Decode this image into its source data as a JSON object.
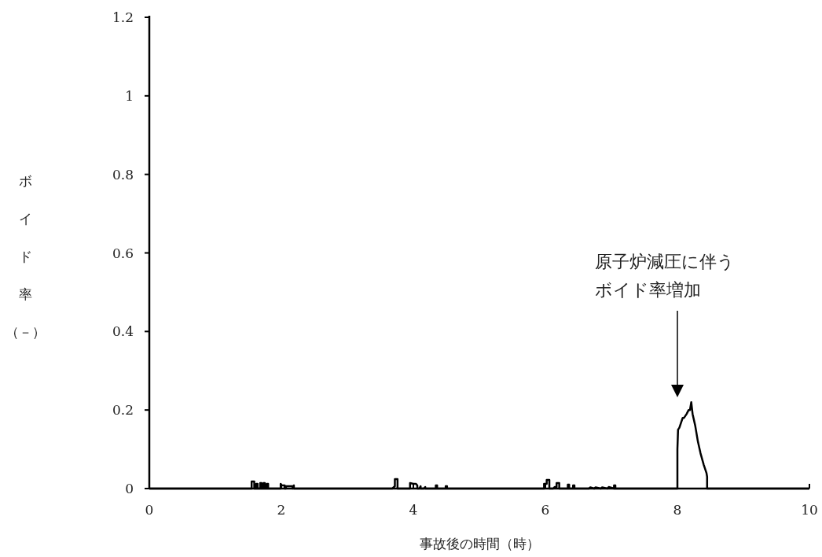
{
  "chart_data": {
    "type": "line",
    "xlabel": "事故後の時間（時）",
    "ylabel": "ボイド率（－）",
    "xlim": [
      0,
      10
    ],
    "ylim": [
      0,
      1.2
    ],
    "xticks": [
      0,
      2,
      4,
      6,
      8,
      10
    ],
    "yticks": [
      0,
      0.2,
      0.4,
      0.6,
      0.8,
      1,
      1.2
    ],
    "grid": false,
    "marker": "none",
    "line_style": "solid",
    "annotations": [
      "原子炉減圧に伴うボイド率増加"
    ],
    "series": [
      {
        "color": "#000000",
        "x": [
          0,
          1.55,
          1.55,
          1.59,
          1.59,
          1.62,
          1.62,
          1.64,
          1.64,
          1.68,
          1.68,
          1.7,
          1.7,
          1.73,
          1.73,
          1.75,
          1.75,
          1.78,
          1.78,
          1.8,
          1.8,
          1.99,
          1.99,
          2.01,
          2.05,
          2.05,
          2.07,
          2.07,
          2.17,
          2.17,
          2.19,
          2.19,
          3.68,
          3.72,
          3.72,
          3.76,
          3.76,
          3.95,
          3.95,
          4.0,
          4.04,
          4.06,
          4.06,
          4.09,
          4.11,
          4.11,
          4.16,
          4.18,
          4.18,
          4.34,
          4.34,
          4.36,
          4.36,
          4.49,
          4.49,
          4.51,
          4.51,
          5.98,
          5.98,
          6.02,
          6.02,
          6.06,
          6.06,
          6.12,
          6.14,
          6.17,
          6.17,
          6.21,
          6.21,
          6.34,
          6.34,
          6.36,
          6.36,
          6.42,
          6.42,
          6.44,
          6.44,
          6.66,
          6.68,
          6.74,
          6.76,
          6.84,
          6.86,
          6.94,
          6.96,
          7.04,
          7.04,
          7.06,
          7.06,
          8.0,
          8.0,
          8.01,
          8.03,
          8.06,
          8.08,
          8.1,
          8.14,
          8.17,
          8.19,
          8.21,
          8.23,
          8.27,
          8.31,
          8.35,
          8.4,
          8.44,
          8.45,
          8.45,
          10
        ],
        "values": [
          0,
          0,
          0.018,
          0.018,
          0,
          0,
          0.012,
          0.012,
          0,
          0,
          0.014,
          0.014,
          0,
          0,
          0.014,
          0.014,
          0,
          0,
          0.012,
          0.012,
          0,
          0,
          0.012,
          0.008,
          0.008,
          0,
          0,
          0.006,
          0.006,
          0,
          0.008,
          0,
          0,
          0.006,
          0.024,
          0.024,
          0,
          0,
          0.014,
          0.012,
          0.012,
          0.008,
          0,
          0,
          0.006,
          0,
          0,
          0.004,
          0,
          0,
          0.008,
          0.008,
          0,
          0,
          0.006,
          0.006,
          0,
          0,
          0.012,
          0.012,
          0.022,
          0.022,
          0,
          0,
          0.004,
          0.004,
          0.014,
          0.014,
          0,
          0,
          0.01,
          0.01,
          0,
          0,
          0.008,
          0.008,
          0,
          0,
          0.003,
          0,
          0.003,
          0,
          0.003,
          0,
          0.004,
          0,
          0.008,
          0.008,
          0,
          0,
          0.1,
          0.15,
          0.155,
          0.17,
          0.18,
          0.18,
          0.19,
          0.2,
          0.2,
          0.22,
          0.19,
          0.16,
          0.12,
          0.09,
          0.06,
          0.04,
          0.03,
          0,
          0
        ]
      }
    ]
  }
}
